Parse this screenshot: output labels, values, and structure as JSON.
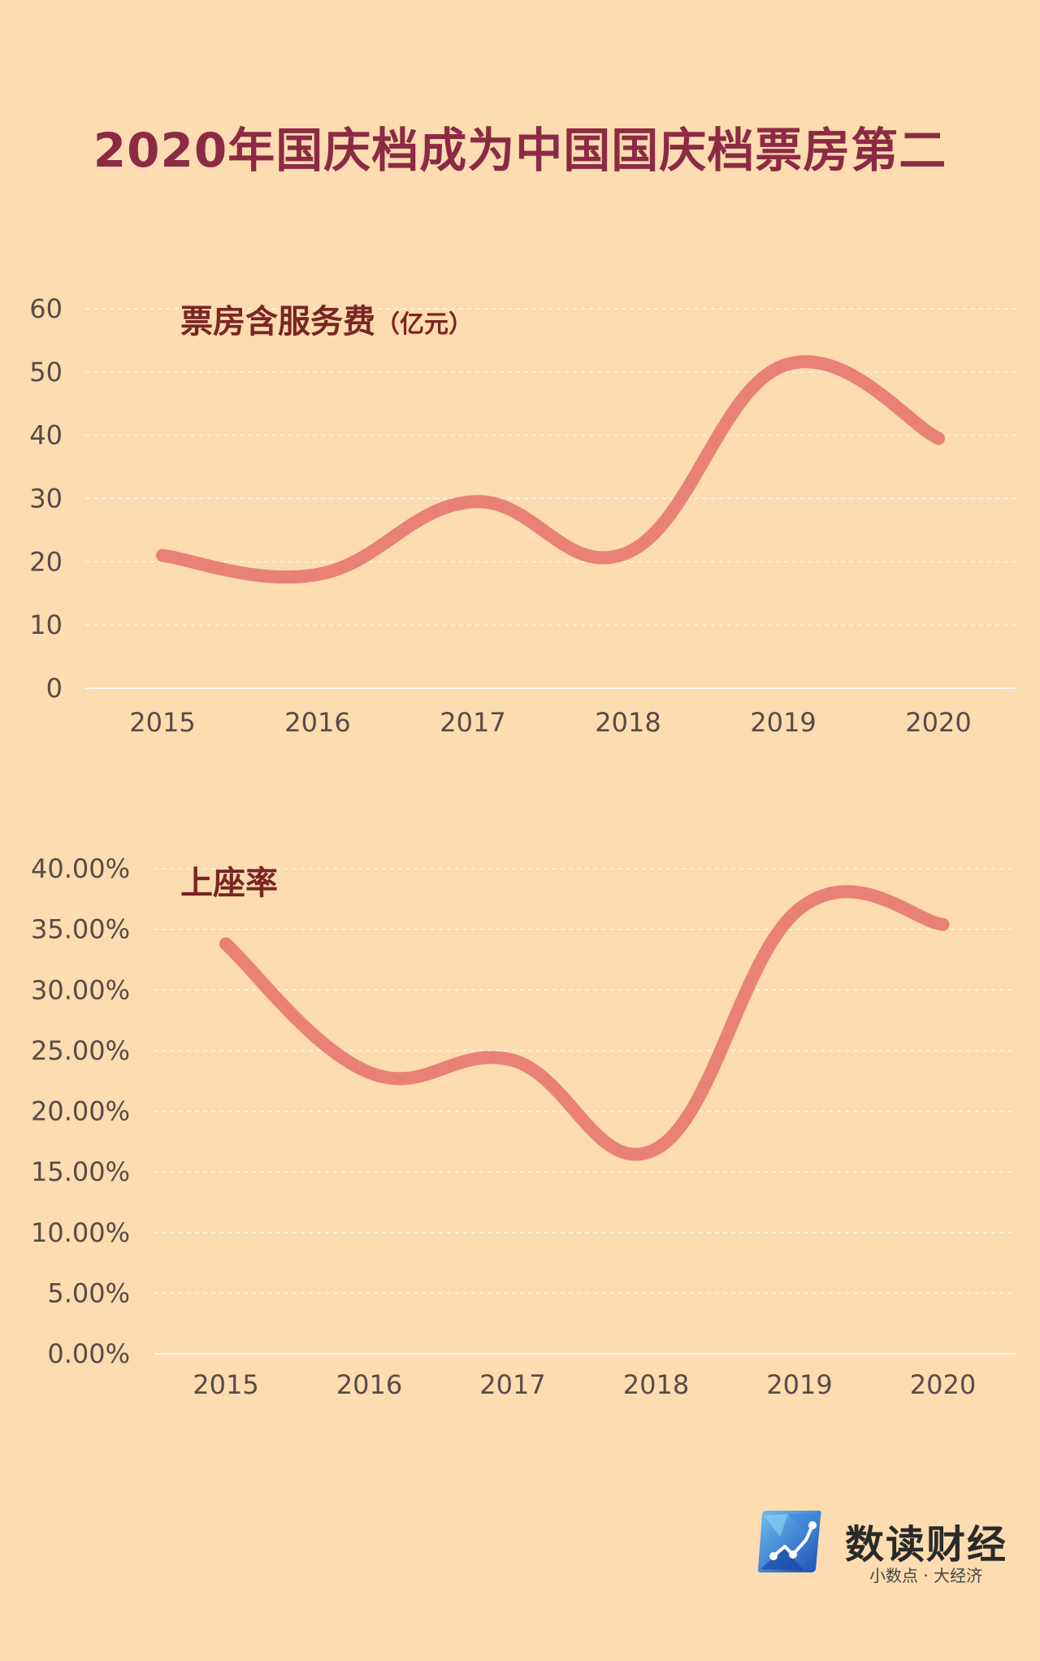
{
  "title": "2020年国庆档成为中国国庆档票房第二",
  "chart_data": [
    {
      "type": "line",
      "title": "票房含服务费",
      "unit": "（亿元）",
      "categories": [
        "2015",
        "2016",
        "2017",
        "2018",
        "2019",
        "2020"
      ],
      "values": [
        21,
        18,
        29.5,
        21.5,
        51,
        39.5
      ],
      "ylim": [
        0,
        60
      ],
      "yticks": [
        "0",
        "10",
        "20",
        "30",
        "40",
        "50",
        "60"
      ],
      "grid": true,
      "line_color": "#e98177"
    },
    {
      "type": "line",
      "title": "上座率",
      "categories": [
        "2015",
        "2016",
        "2017",
        "2018",
        "2019",
        "2020"
      ],
      "values": [
        33.8,
        23.2,
        24.2,
        16.9,
        36.7,
        35.4
      ],
      "ylim": [
        0,
        40
      ],
      "yticks": [
        "0.00%",
        "5.00%",
        "10.00%",
        "15.00%",
        "20.00%",
        "25.00%",
        "30.00%",
        "35.00%",
        "40.00%"
      ],
      "grid": true,
      "line_color": "#e98177"
    }
  ],
  "logo": {
    "name": "数读财经",
    "slogan": "小数点 · 大经济"
  }
}
